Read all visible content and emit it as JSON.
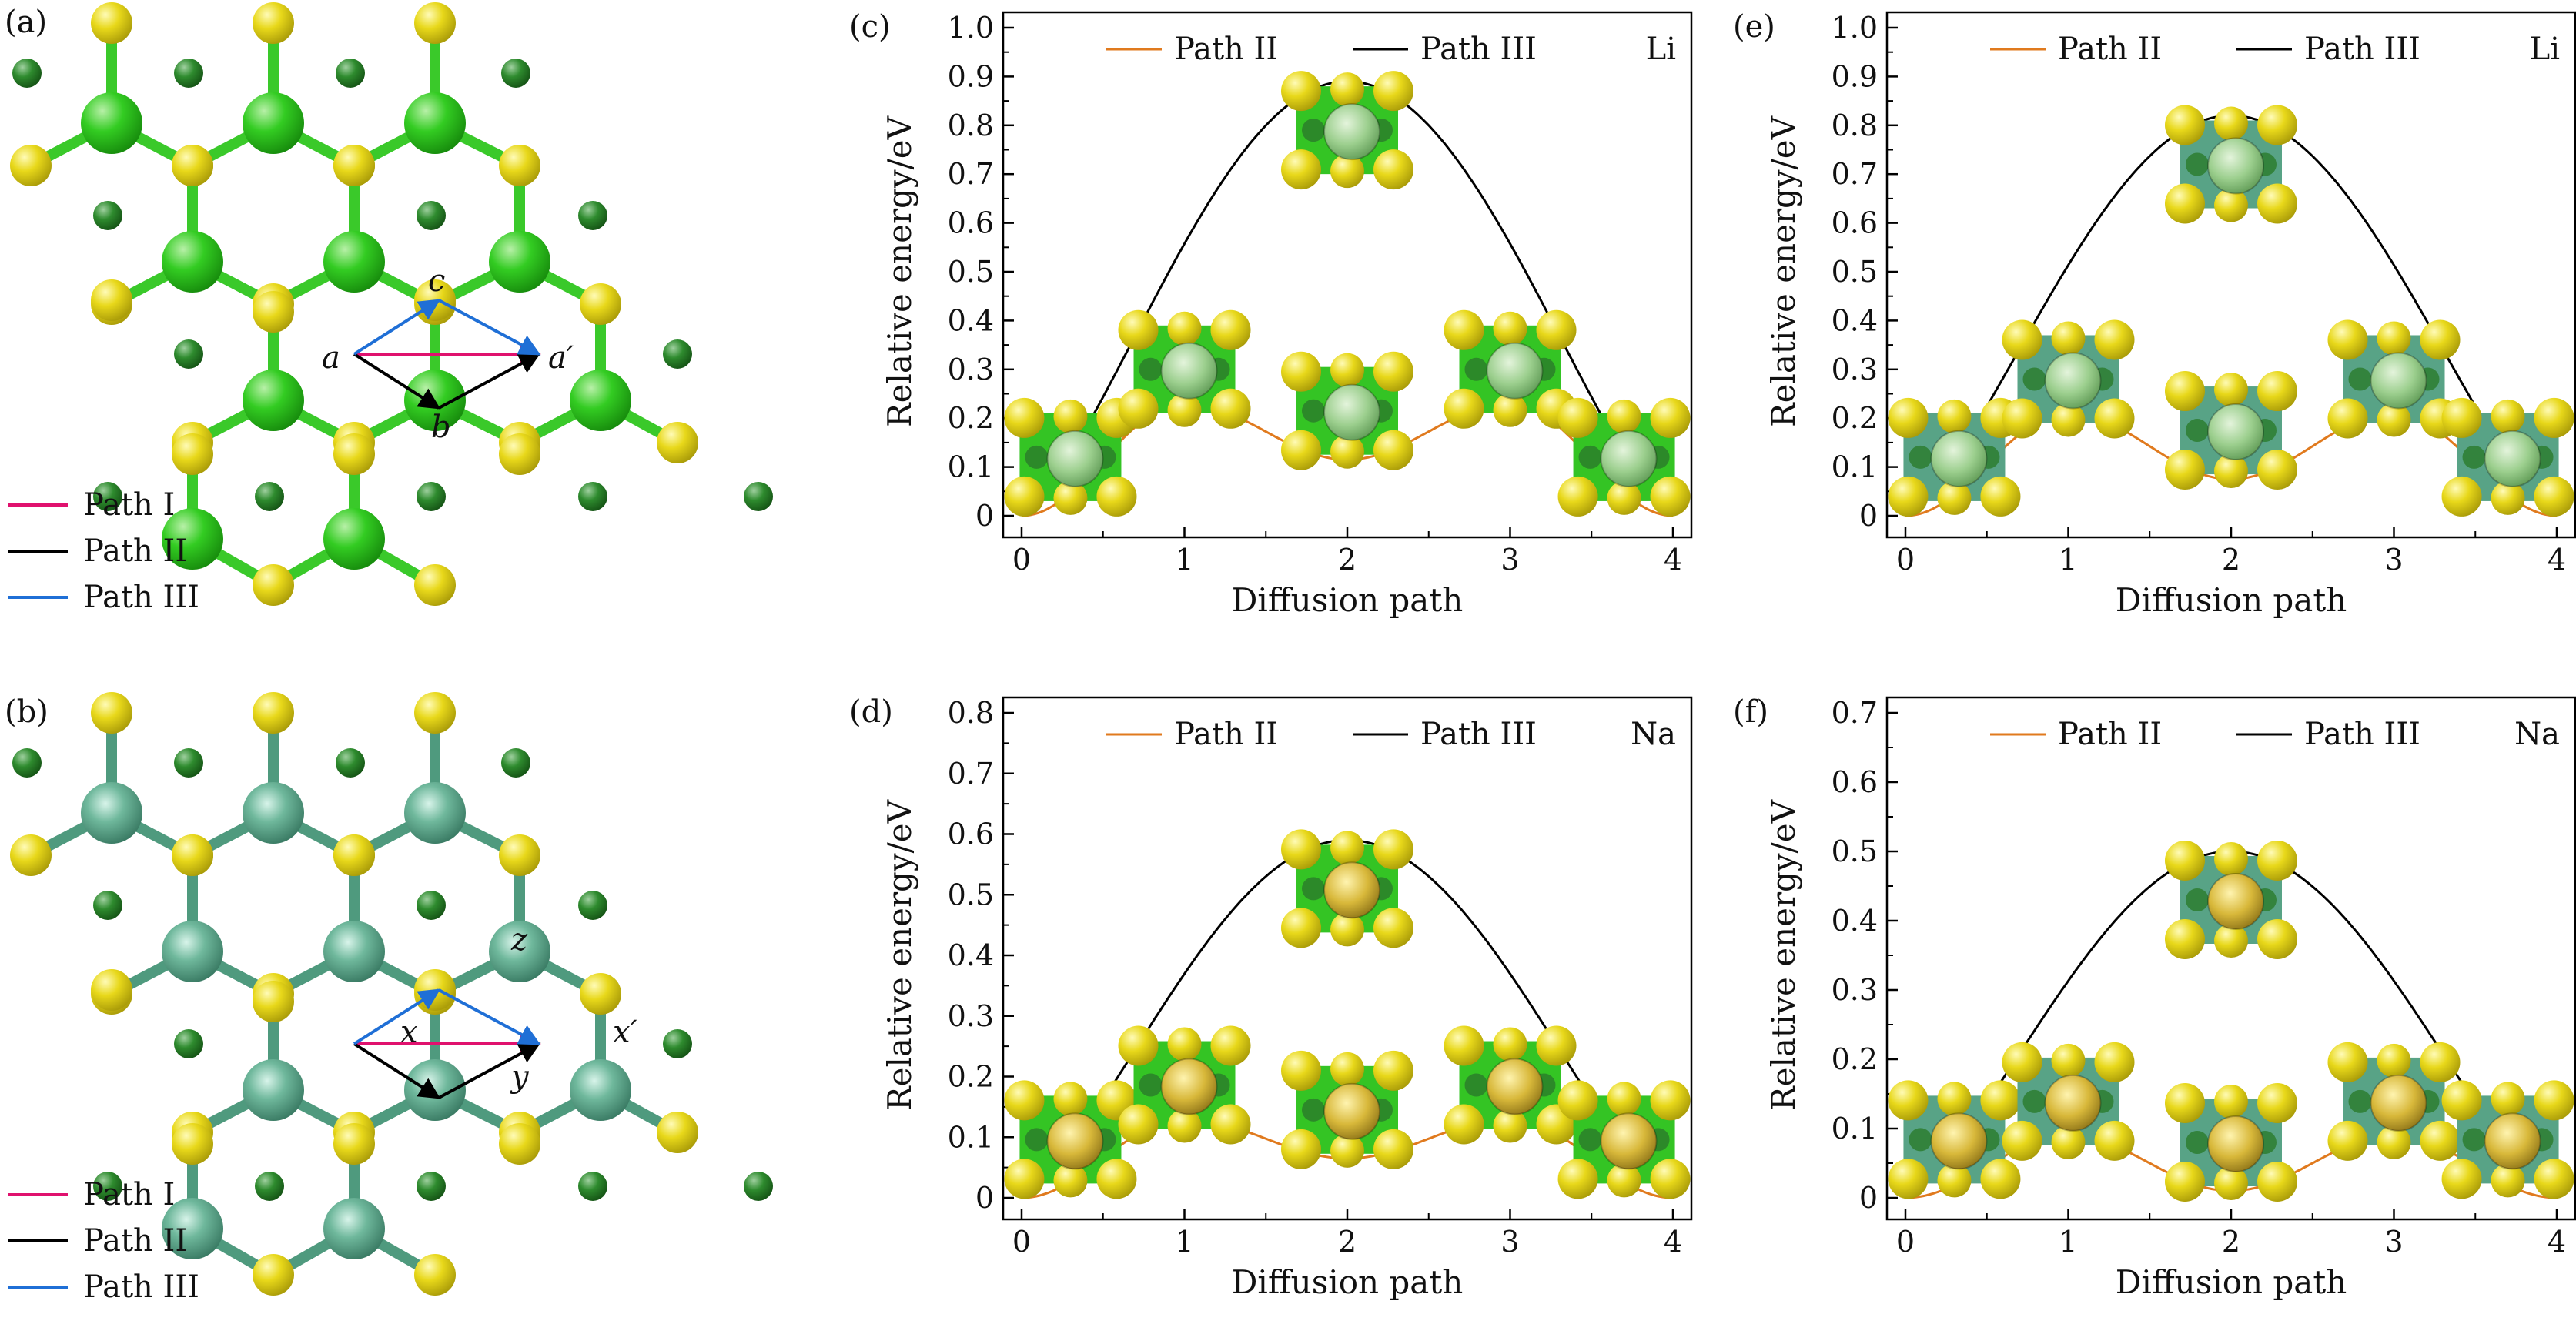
{
  "colors": {
    "path1": "#e0116e",
    "path2": "#e07a1e",
    "path3_arrow": "#1f6fd6",
    "black": "#000000",
    "green_bright": "#33cc22",
    "green_dark": "#2e8b2e",
    "green_teal": "#4f9a7e",
    "yellow": "#e8d81a",
    "li_ion": "#9ccf8e",
    "na_ion": "#d8b83a"
  },
  "structures": [
    {
      "panel": "(a)",
      "variant": "bright",
      "site_labels": [
        "a",
        "a′",
        "b",
        "c"
      ],
      "legend": [
        "Path I",
        "Path II",
        "Path III"
      ]
    },
    {
      "panel": "(b)",
      "variant": "teal",
      "site_labels": [
        "x",
        "x′",
        "y",
        "z"
      ],
      "legend": [
        "Path I",
        "Path II",
        "Path III"
      ]
    }
  ],
  "chart_data": [
    {
      "panel": "(c)",
      "type": "line",
      "ion": "Li",
      "inset": "bright-li",
      "xlabel": "Diffusion path",
      "ylabel": "Relative energy/eV",
      "xlim": [
        0,
        4
      ],
      "ylim": [
        0,
        1.0
      ],
      "xticks": [
        "0",
        "1",
        "2",
        "3",
        "4"
      ],
      "yticks": [
        "0",
        "0.1",
        "0.2",
        "0.3",
        "0.4",
        "0.5",
        "0.6",
        "0.7",
        "0.8",
        "0.9",
        "1.0"
      ],
      "series": [
        {
          "name": "Path II",
          "color": "#e07a1e",
          "x": [
            0,
            1,
            2,
            3,
            4
          ],
          "y": [
            0,
            0.23,
            0.115,
            0.23,
            0
          ]
        },
        {
          "name": "Path III",
          "color": "#000000",
          "x": [
            0,
            2,
            4
          ],
          "y": [
            0,
            0.89,
            0
          ]
        }
      ]
    },
    {
      "panel": "(e)",
      "type": "line",
      "ion": "Li",
      "inset": "teal-li",
      "xlabel": "Diffusion path",
      "ylabel": "Relative energy/eV",
      "xlim": [
        0,
        4
      ],
      "ylim": [
        0,
        1.0
      ],
      "xticks": [
        "0",
        "1",
        "2",
        "3",
        "4"
      ],
      "yticks": [
        "0",
        "0.1",
        "0.2",
        "0.3",
        "0.4",
        "0.5",
        "0.6",
        "0.7",
        "0.8",
        "0.9",
        "1.0"
      ],
      "series": [
        {
          "name": "Path II",
          "color": "#e07a1e",
          "x": [
            0,
            1,
            2,
            3,
            4
          ],
          "y": [
            0,
            0.21,
            0.075,
            0.21,
            0
          ]
        },
        {
          "name": "Path III",
          "color": "#000000",
          "x": [
            0,
            2,
            4
          ],
          "y": [
            0,
            0.82,
            0
          ]
        }
      ]
    },
    {
      "panel": "(d)",
      "type": "line",
      "ion": "Na",
      "inset": "bright-na",
      "xlabel": "Diffusion path",
      "ylabel": "Relative energy/eV",
      "xlim": [
        0,
        4
      ],
      "ylim": [
        0,
        0.8
      ],
      "xticks": [
        "0",
        "1",
        "2",
        "3",
        "4"
      ],
      "yticks": [
        "0",
        "0.1",
        "0.2",
        "0.3",
        "0.4",
        "0.5",
        "0.6",
        "0.7",
        "0.8"
      ],
      "series": [
        {
          "name": "Path II",
          "color": "#e07a1e",
          "x": [
            0,
            1,
            2,
            3,
            4
          ],
          "y": [
            0,
            0.13,
            0.065,
            0.13,
            0
          ]
        },
        {
          "name": "Path III",
          "color": "#000000",
          "x": [
            0,
            2,
            4
          ],
          "y": [
            0,
            0.59,
            0
          ]
        }
      ]
    },
    {
      "panel": "(f)",
      "type": "line",
      "ion": "Na",
      "inset": "teal-na",
      "xlabel": "Diffusion path",
      "ylabel": "Relative energy/eV",
      "xlim": [
        0,
        4
      ],
      "ylim": [
        0,
        0.7
      ],
      "xticks": [
        "0",
        "1",
        "2",
        "3",
        "4"
      ],
      "yticks": [
        "0",
        "0.1",
        "0.2",
        "0.3",
        "0.4",
        "0.5",
        "0.6",
        "0.7"
      ],
      "series": [
        {
          "name": "Path II",
          "color": "#e07a1e",
          "x": [
            0,
            1,
            2,
            3,
            4
          ],
          "y": [
            0,
            0.09,
            0.01,
            0.09,
            0
          ]
        },
        {
          "name": "Path III",
          "color": "#000000",
          "x": [
            0,
            2,
            4
          ],
          "y": [
            0,
            0.5,
            0
          ]
        }
      ]
    }
  ]
}
